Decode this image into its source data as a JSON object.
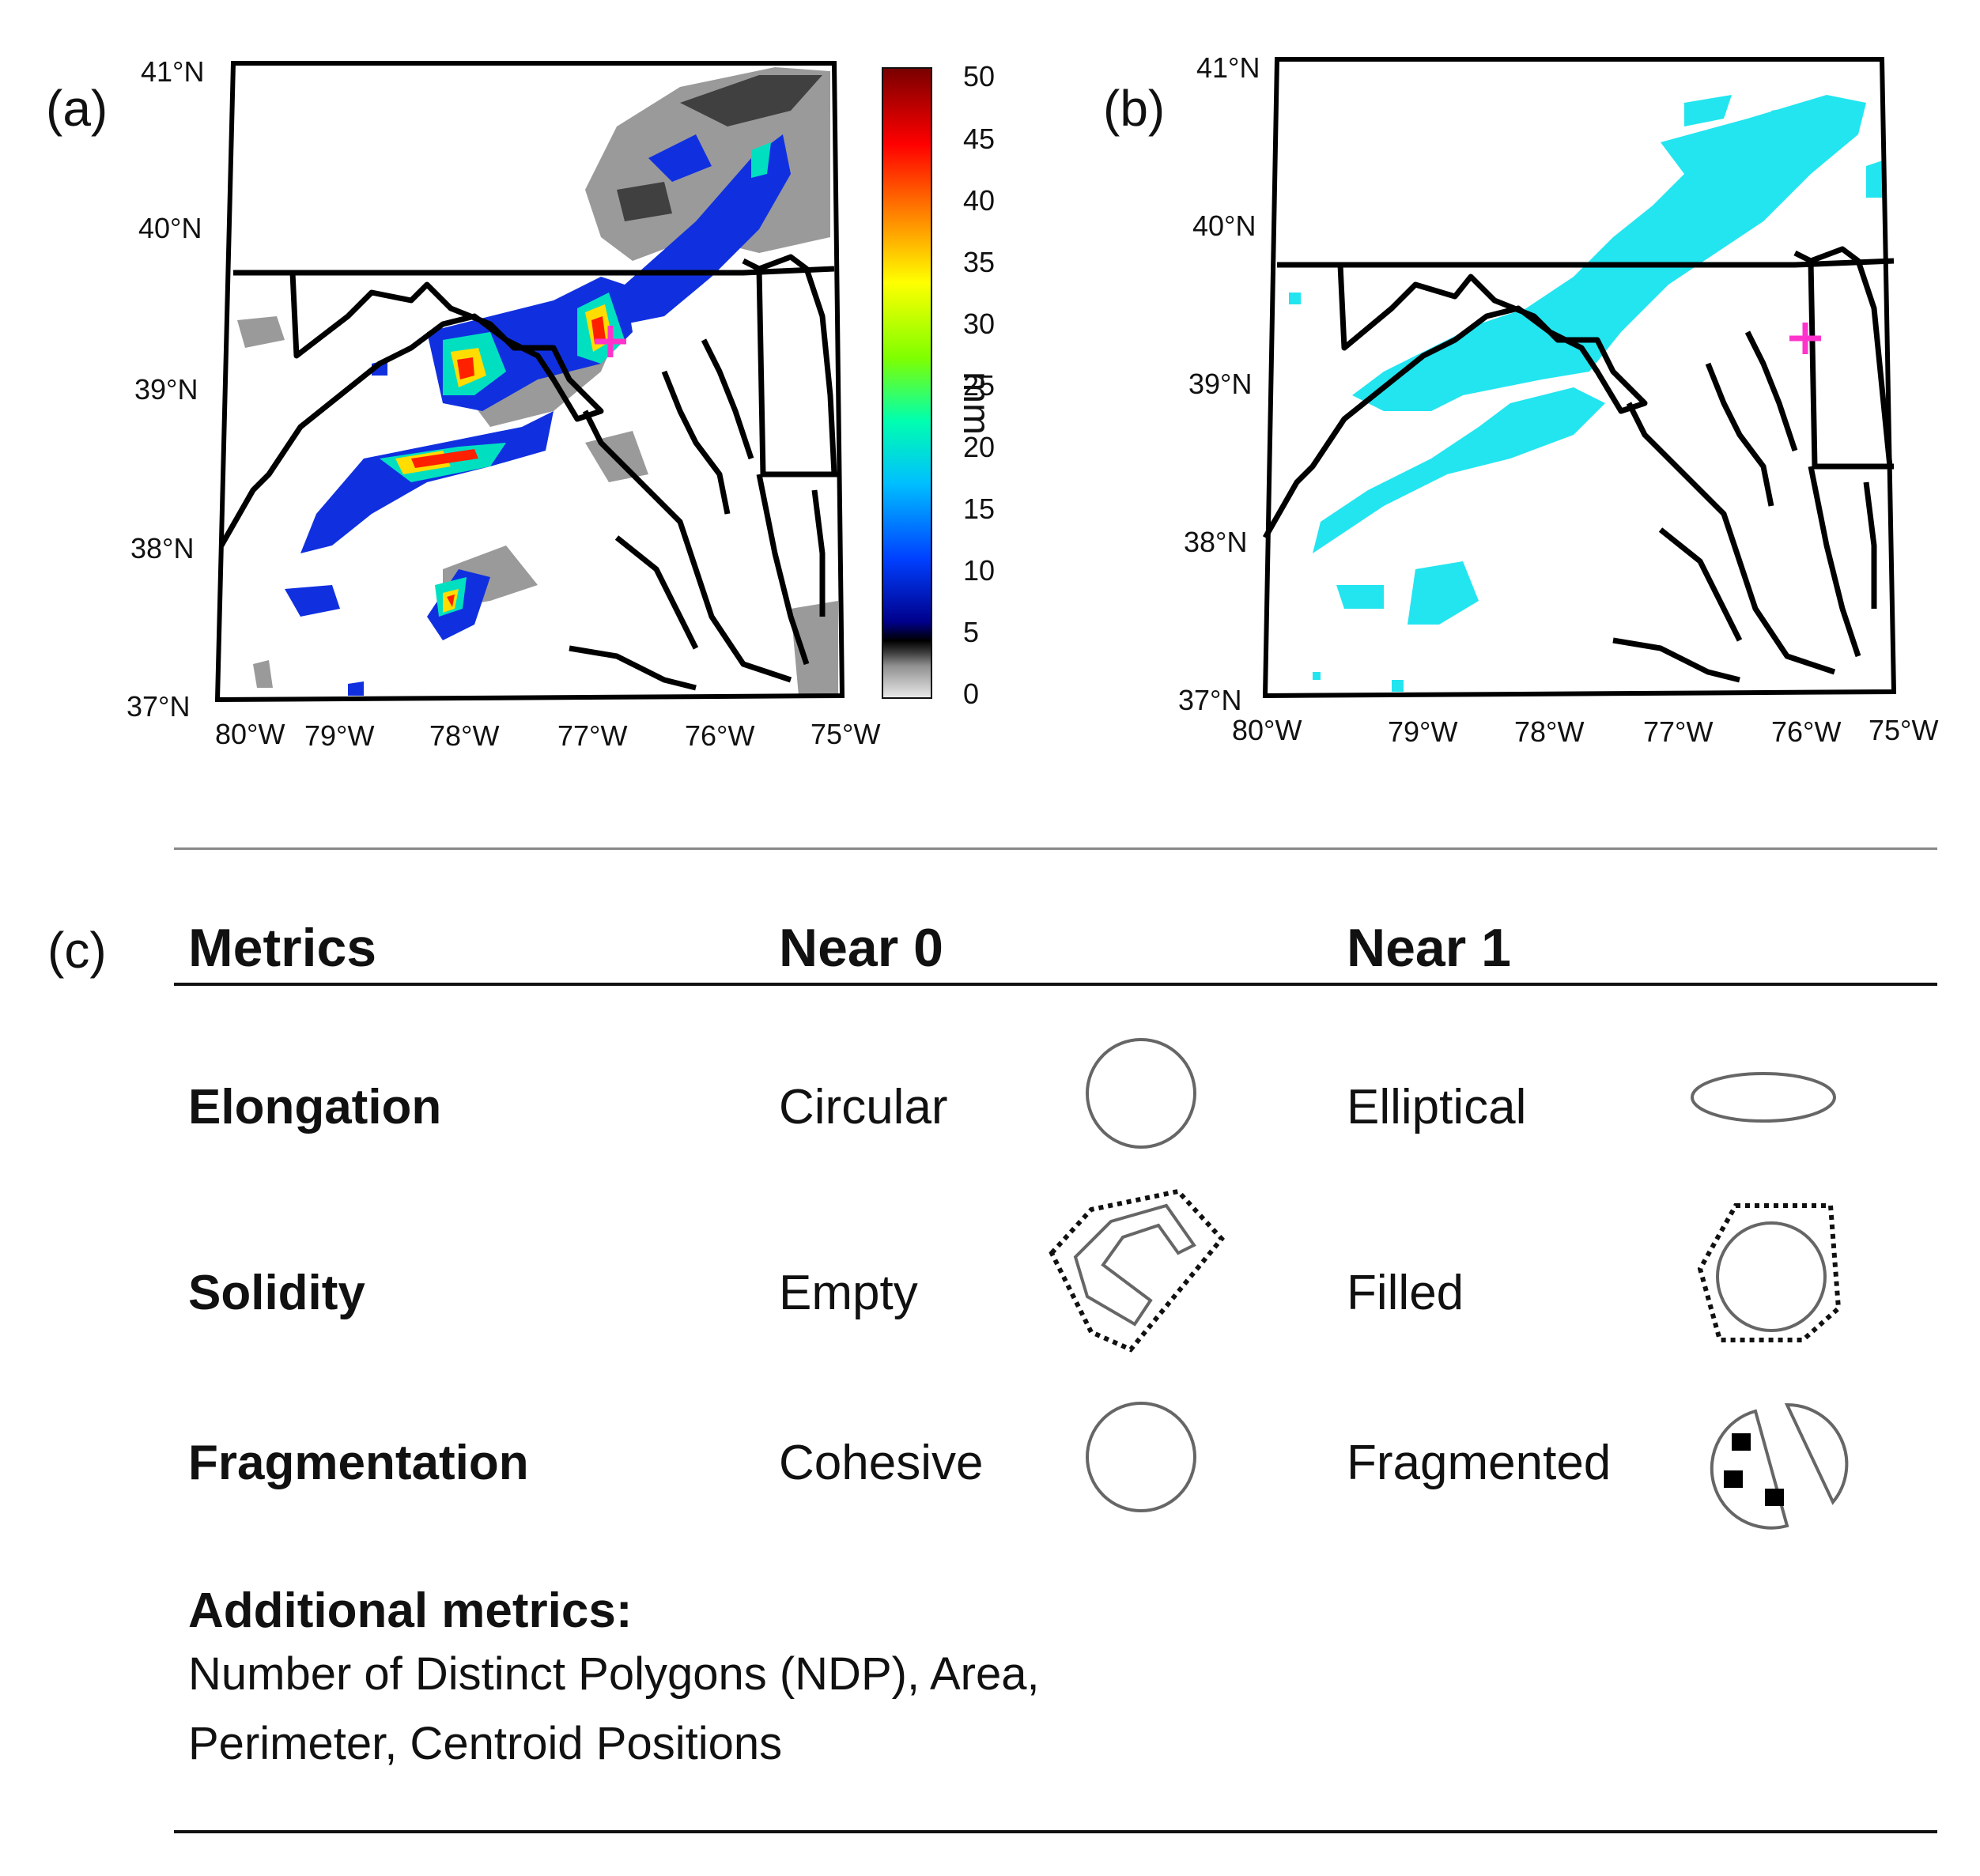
{
  "panel_a": {
    "label": "(a)",
    "lat_ticks": [
      "41°N",
      "40°N",
      "39°N",
      "38°N",
      "37°N"
    ],
    "lon_ticks": [
      "80°W",
      "79°W",
      "78°W",
      "77°W",
      "76°W",
      "75°W"
    ],
    "colorbar": {
      "ticks": [
        "50",
        "45",
        "40",
        "35",
        "30",
        "25",
        "20",
        "15",
        "10",
        "5",
        "0"
      ],
      "unit": "mm",
      "colors": [
        "#8b0000",
        "#ff0000",
        "#ff8c00",
        "#ffff00",
        "#7fff00",
        "#00ffb0",
        "#00bfff",
        "#0040ff",
        "#00008b",
        "#000000",
        "#808080",
        "#e6e6e6"
      ]
    },
    "marker_color": "#ff33cc"
  },
  "panel_b": {
    "label": "(b)",
    "lat_ticks": [
      "41°N",
      "40°N",
      "39°N",
      "38°N",
      "37°N"
    ],
    "lon_ticks": [
      "80°W",
      "79°W",
      "78°W",
      "77°W",
      "76°W",
      "75°W"
    ],
    "fill_color": "#22e5f0",
    "marker_color": "#ff33cc"
  },
  "panel_c": {
    "label": "(c)",
    "headers": {
      "metrics": "Metrics",
      "near0": "Near 0",
      "near1": "Near 1"
    },
    "rows": [
      {
        "name": "Elongation",
        "near0": "Circular",
        "near1": "Elliptical"
      },
      {
        "name": "Solidity",
        "near0": "Empty",
        "near1": "Filled"
      },
      {
        "name": "Fragmentation",
        "near0": "Cohesive",
        "near1": "Fragmented"
      }
    ],
    "additional_title": "Additional metrics:",
    "additional_line1": "Number of Distinct Polygons (NDP), Area,",
    "additional_line2": "Perimeter, Centroid Positions"
  }
}
